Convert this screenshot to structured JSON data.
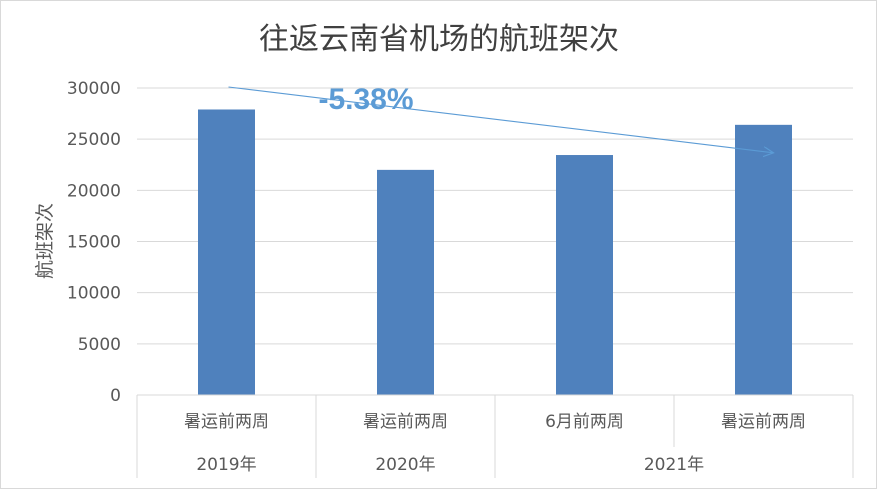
{
  "chart_data": {
    "type": "bar",
    "title": "往返云南省机场的航班架次",
    "ylabel": "航班架次",
    "ylim": [
      0,
      30000
    ],
    "yticks": [
      0,
      5000,
      10000,
      15000,
      20000,
      25000,
      30000
    ],
    "grid": true,
    "bar_color": "#4f81bd",
    "categories": [
      "暑运前两周",
      "暑运前两周",
      "6月前两周",
      "暑运前两周"
    ],
    "values": [
      27900,
      22000,
      23450,
      26400
    ],
    "groups": [
      {
        "label": "2019年",
        "span": 1
      },
      {
        "label": "2020年",
        "span": 1
      },
      {
        "label": "2021年",
        "span": 2
      }
    ],
    "annotation": {
      "text": "-5.38%",
      "from": 0,
      "to": 3,
      "color": "#5b9bd5"
    }
  }
}
